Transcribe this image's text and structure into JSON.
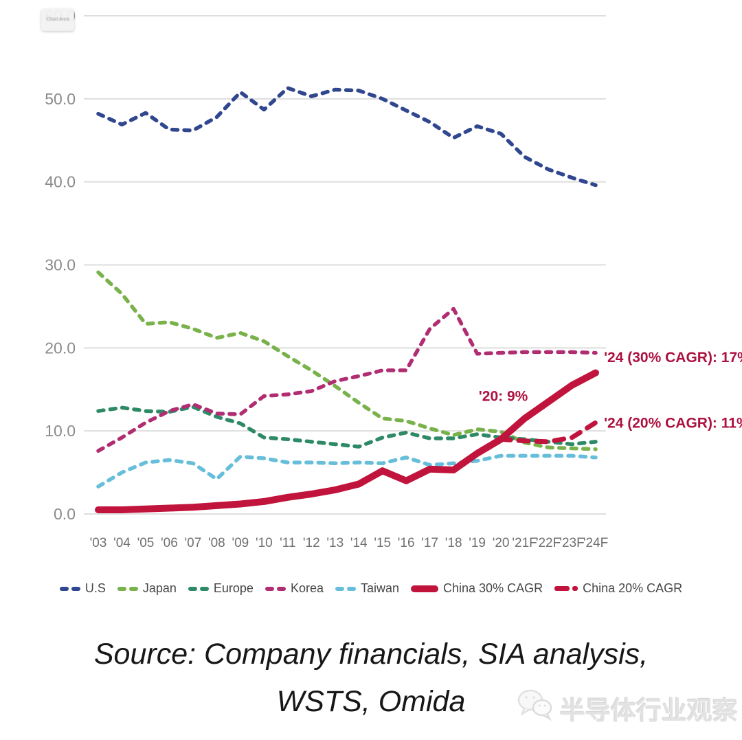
{
  "chart_data": {
    "type": "line",
    "title": "",
    "xlabel": "",
    "ylabel": "",
    "x_labels": [
      "'03",
      "'04",
      "'05",
      "'06",
      "'07",
      "'08",
      "'09",
      "'10",
      "'11",
      "'12",
      "'13",
      "'14",
      "'15",
      "'16",
      "'17",
      "'18",
      "'19",
      "'20",
      "'21F",
      "'22F",
      "'23F",
      "'24F"
    ],
    "y_ticks": [
      0,
      10,
      20,
      30,
      40,
      50,
      60
    ],
    "ylim": [
      0,
      60
    ],
    "grid": true,
    "legend_position": "bottom",
    "series": [
      {
        "name": "U.S",
        "color": "#30468f",
        "style": "dashed",
        "width": 5.5,
        "values": [
          48.2,
          46.9,
          48.3,
          46.3,
          46.2,
          47.8,
          50.8,
          48.7,
          51.3,
          50.3,
          51.1,
          51.0,
          50.0,
          48.6,
          47.2,
          45.3,
          46.7,
          45.8,
          43.0,
          41.5,
          40.5,
          39.6
        ]
      },
      {
        "name": "Japan",
        "color": "#79b24a",
        "style": "dashed",
        "width": 5.5,
        "values": [
          29.1,
          26.5,
          22.9,
          23.1,
          22.3,
          21.2,
          21.8,
          20.8,
          19.0,
          17.3,
          15.4,
          13.4,
          11.5,
          11.2,
          10.3,
          9.5,
          10.2,
          9.9,
          8.6,
          8.0,
          7.9,
          7.8
        ]
      },
      {
        "name": "Europe",
        "color": "#2e8a66",
        "style": "dashed",
        "width": 5.5,
        "values": [
          12.4,
          12.8,
          12.4,
          12.3,
          12.9,
          11.7,
          10.9,
          9.2,
          9.0,
          8.7,
          8.4,
          8.1,
          9.2,
          9.8,
          9.1,
          9.1,
          9.6,
          9.2,
          9.0,
          8.7,
          8.4,
          8.7
        ]
      },
      {
        "name": "Korea",
        "color": "#b12d72",
        "style": "dashed",
        "width": 5.5,
        "values": [
          7.6,
          9.2,
          11.0,
          12.4,
          13.2,
          12.1,
          12.0,
          14.2,
          14.4,
          14.8,
          16.0,
          16.6,
          17.3,
          17.3,
          22.3,
          24.7,
          19.3,
          19.4,
          19.5,
          19.5,
          19.5,
          19.4
        ]
      },
      {
        "name": "Taiwan",
        "color": "#66bedb",
        "style": "dashed",
        "width": 5.5,
        "values": [
          3.3,
          5.0,
          6.2,
          6.5,
          6.1,
          4.2,
          6.9,
          6.7,
          6.2,
          6.2,
          6.1,
          6.2,
          6.1,
          6.8,
          5.9,
          6.1,
          6.4,
          7.0,
          7.0,
          7.0,
          7.0,
          6.8
        ]
      },
      {
        "name": "China 30% CAGR",
        "color": "#c1143c",
        "style": "solid",
        "width": 10,
        "values": [
          0.5,
          0.5,
          0.6,
          0.7,
          0.8,
          1.0,
          1.2,
          1.5,
          2.0,
          2.4,
          2.9,
          3.6,
          5.2,
          4.0,
          5.4,
          5.3,
          7.3,
          9.0,
          11.5,
          13.5,
          15.5,
          17.0
        ]
      },
      {
        "name": "China 20% CAGR",
        "color": "#c1143c",
        "style": "dashed-bold",
        "width": 7,
        "values": [
          null,
          null,
          null,
          null,
          null,
          null,
          null,
          null,
          null,
          null,
          null,
          null,
          null,
          null,
          null,
          null,
          null,
          9.0,
          8.8,
          8.7,
          9.2,
          11.0
        ]
      }
    ],
    "annotations": [
      {
        "text": "'20: 9%",
        "xi": 17.1,
        "y": 13.6,
        "anchor": "middle"
      },
      {
        "text": "'24 (30% CAGR): 17%",
        "xi": 21.35,
        "y": 18.3,
        "anchor": "start"
      },
      {
        "text": "'24 (20% CAGR): 11%",
        "xi": 21.35,
        "y": 10.4,
        "anchor": "start"
      }
    ],
    "colors": {
      "grid": "#dedede",
      "y_tick_label": "#8a8a8a",
      "x_tick_label": "#6f6f6f",
      "annotation": "#ad1140"
    }
  },
  "overlay": {
    "chart_area_badge": "Chart Area"
  },
  "source": {
    "line1": "Source: Company financials, SIA analysis,",
    "line2": "WSTS, Omida"
  },
  "watermark": {
    "text": "半导体行业观察"
  }
}
